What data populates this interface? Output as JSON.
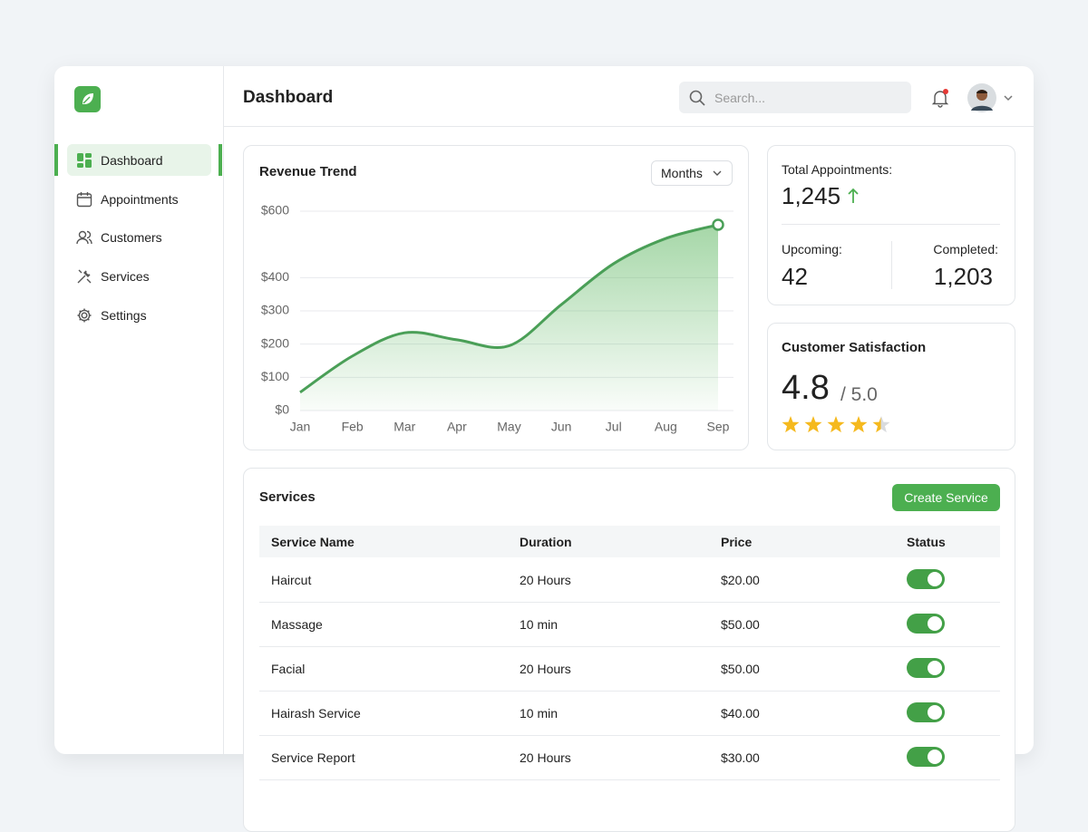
{
  "header": {
    "title": "Dashboard",
    "search_placeholder": "Search..."
  },
  "sidebar": {
    "nav": [
      "Dashboard",
      "Appointments",
      "Customers",
      "Services",
      "Settings"
    ]
  },
  "chart_data": {
    "type": "line",
    "title": "Revenue Trend",
    "filter": "Months",
    "categories": [
      "Jan",
      "Feb",
      "Mar",
      "Apr",
      "May",
      "Jun",
      "Jul",
      "Aug",
      "Sep"
    ],
    "values": [
      55,
      164,
      234,
      213,
      195,
      319,
      442,
      518,
      559
    ],
    "color": "#4a9f57",
    "ylim": [
      0,
      600
    ],
    "yticks": [
      {
        "value": 0,
        "label": "$0"
      },
      {
        "value": 100,
        "label": "$100"
      },
      {
        "value": 200,
        "label": "$200"
      },
      {
        "value": 300,
        "label": "$300"
      },
      {
        "value": 400,
        "label": "$400"
      },
      {
        "value": 600,
        "label": "$600"
      }
    ],
    "grid": true
  },
  "stats": {
    "total_label": "Total Appointments:",
    "total": "1,245",
    "upcoming_label": "Upcoming:",
    "upcoming": "42",
    "completed_label": "Completed:",
    "completed": "1,203"
  },
  "satisfaction": {
    "title": "Customer Satisfaction",
    "score": 4.8,
    "out_of": "/ 5.0"
  },
  "services": {
    "title": "Services",
    "button": "Create Service",
    "columns": [
      "Service Name",
      "Duration",
      "Price",
      "Status"
    ],
    "rows": [
      [
        "Haircut",
        "20 Hours",
        "$20.00"
      ],
      [
        "Massage",
        "10 min",
        "$50.00"
      ],
      [
        "Facial",
        "20 Hours",
        "$50.00"
      ],
      [
        "Hairash Service",
        "10 min",
        "$40.00"
      ],
      [
        "Service Report",
        "20 Hours",
        "$30.00"
      ]
    ],
    "status": [
      true,
      true,
      true,
      true,
      true
    ]
  }
}
